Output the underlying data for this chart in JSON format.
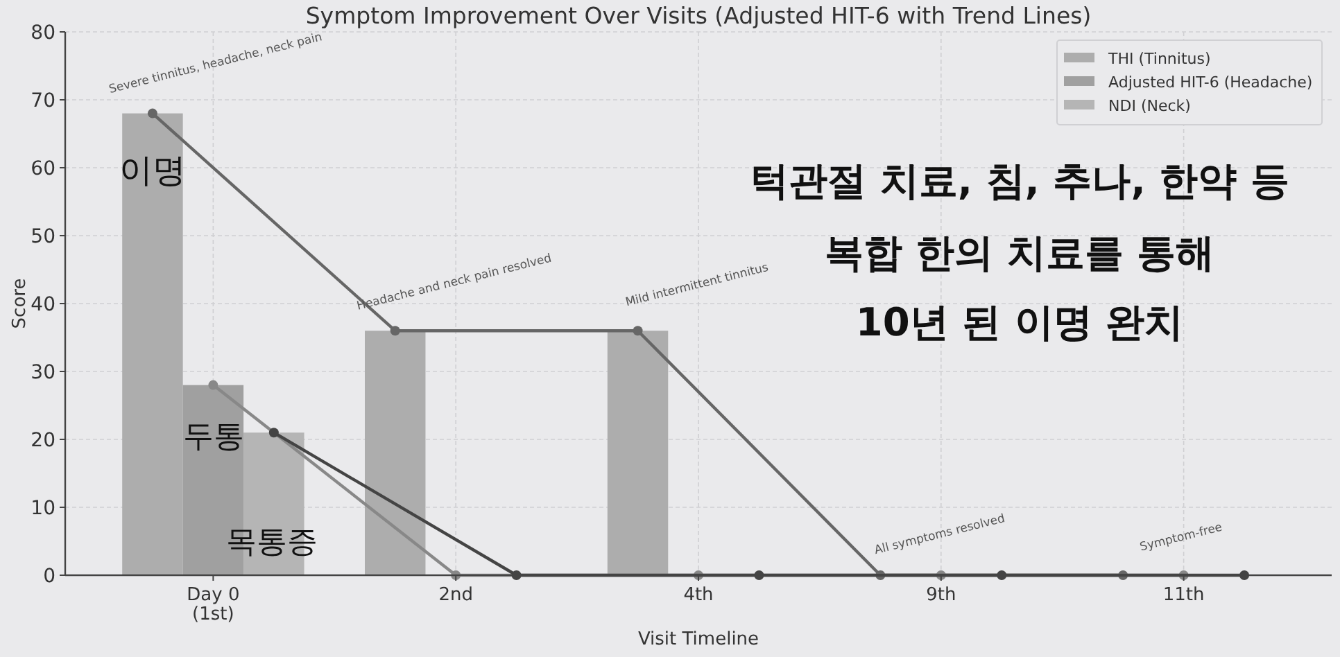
{
  "chart_data": {
    "type": "bar",
    "title": "Symptom Improvement Over Visits (Adjusted HIT-6 with Trend Lines)",
    "xlabel": "Visit Timeline",
    "ylabel": "Score",
    "categories": [
      "Day 0 (1st)",
      "2nd",
      "4th",
      "9th",
      "11th"
    ],
    "series": [
      {
        "name": "THI (Tinnitus)",
        "color": "#adadad",
        "values": [
          68,
          36,
          36,
          0,
          0
        ]
      },
      {
        "name": "Adjusted HIT-6 (Headache)",
        "color": "#a0a0a0",
        "values": [
          28,
          0,
          0,
          0,
          0
        ]
      },
      {
        "name": "NDI (Neck)",
        "color": "#b5b5b5",
        "values": [
          21,
          0,
          0,
          0,
          0
        ]
      },
      {
        "type": "line",
        "color": "#666666",
        "values": [
          68,
          36,
          36,
          0,
          0
        ]
      },
      {
        "type": "line",
        "color": "#888888",
        "values": [
          28,
          0,
          0,
          0,
          0
        ]
      },
      {
        "type": "line",
        "color": "#444444",
        "values": [
          21,
          0,
          0,
          0,
          0
        ]
      }
    ],
    "ylim": [
      0,
      80
    ],
    "yticks": [
      0,
      10,
      20,
      30,
      40,
      50,
      60,
      70,
      80
    ],
    "grid": true,
    "legend": "top right",
    "marker": "circle",
    "line_style": "solid",
    "annotations": [
      "Severe tinnitus, headache, neck pain",
      "Headache and neck pain resolved",
      "Mild intermittent tinnitus",
      "All symptoms resolved",
      "Symptom-free",
      "이명",
      "두통",
      "목통증",
      "턱관절 치료, 침, 추나, 한약 등",
      "복합 한의 치료를 통해",
      "10년 된 이명 완치"
    ]
  }
}
